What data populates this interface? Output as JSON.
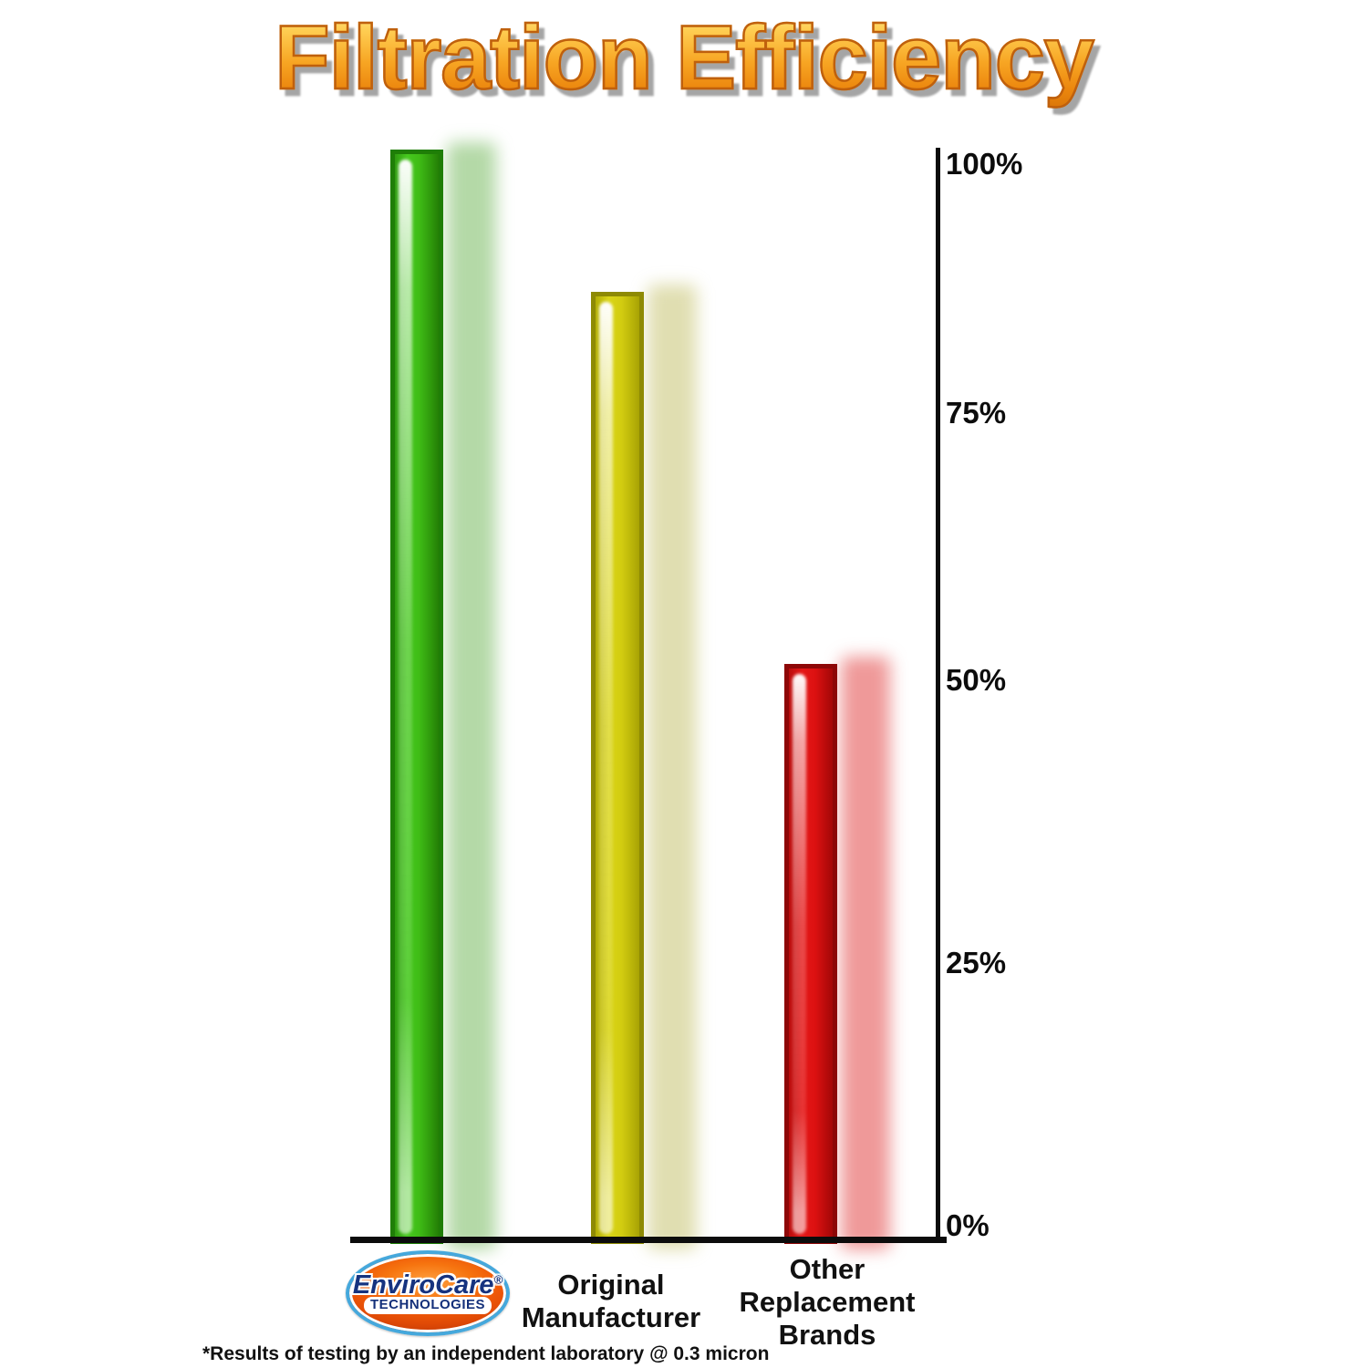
{
  "title": "Filtration Efficiency",
  "footnote": "*Results of testing by an independent laboratory @ 0.3 micron",
  "y_axis": {
    "ticks": [
      "100%",
      "75%",
      "50%",
      "25%",
      "0%"
    ]
  },
  "labels": {
    "original": [
      "Original",
      "Manufacturer"
    ],
    "other": [
      "Other",
      "Replacement",
      "Brands"
    ]
  },
  "logo": {
    "brand": "EnviroCare",
    "registered_mark": "®",
    "subtitle": "TECHNOLOGIES"
  },
  "colors": {
    "title_orange": "#F09A1E",
    "axis_black": "#0C0C0C",
    "bar_green": "#3FBC16",
    "bar_yellow": "#D2CC10",
    "bar_red": "#DC1111",
    "logo_oval_orange": "#EE5708",
    "logo_ring_blue": "#45A8DC",
    "logo_text_blue": "#16337F"
  },
  "chart_data": {
    "type": "bar",
    "title": "Filtration Efficiency",
    "categories": [
      "EnviroCare Technologies",
      "Original Manufacturer",
      "Other Replacement Brands"
    ],
    "values": [
      100,
      87,
      53
    ],
    "unit": "%",
    "ylim": [
      0,
      100
    ],
    "ytick_values": [
      100,
      75,
      50,
      25,
      0
    ],
    "ytick_labels": [
      "100%",
      "75%",
      "50%",
      "25%",
      "0%"
    ],
    "axis_labels_side": "right",
    "grid": false,
    "legend": "none",
    "bar_colors": [
      "#3FBC16",
      "#D2CC10",
      "#DC1111"
    ],
    "annotation": "*Results of testing by an independent laboratory @ 0.3 micron"
  }
}
